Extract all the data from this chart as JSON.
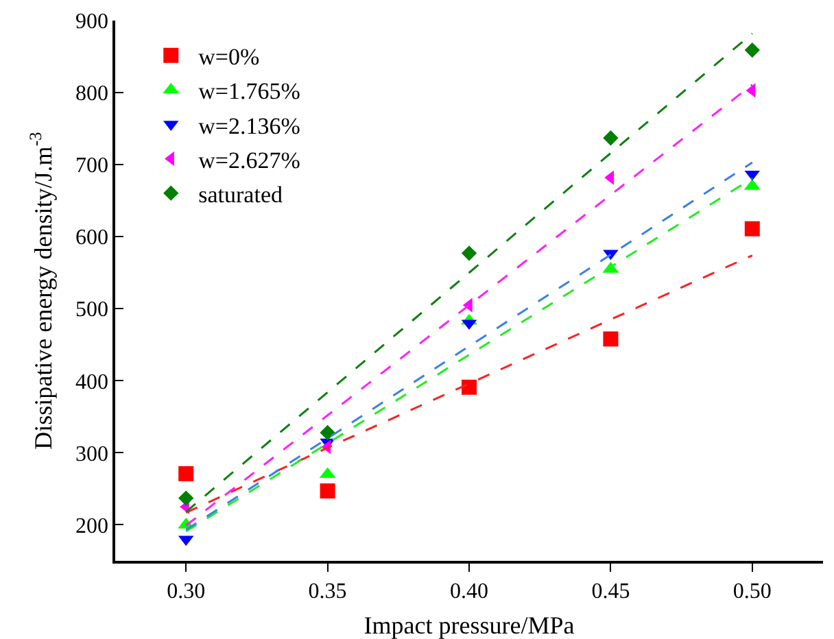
{
  "chart_data": {
    "type": "scatter",
    "xlabel": "Impact pressure/MPa",
    "ylabel": "Dissipative energy density/J.m$^{-3}$",
    "x": [
      0.3,
      0.35,
      0.4,
      0.45,
      0.5
    ],
    "xlim": [
      0.275,
      0.525
    ],
    "xticks": [
      {
        "value": 0.3,
        "label": "0.30"
      },
      {
        "value": 0.35,
        "label": "0.35"
      },
      {
        "value": 0.4,
        "label": "0.40"
      },
      {
        "value": 0.45,
        "label": "0.45"
      },
      {
        "value": 0.5,
        "label": "0.50"
      }
    ],
    "ylim": [
      150,
      900
    ],
    "yticks": [
      200,
      300,
      400,
      500,
      600,
      700,
      800,
      900
    ],
    "grid": false,
    "legend": "top left",
    "series": [
      {
        "name": "w=0%",
        "color": "#ff0000",
        "marker": "square",
        "values": [
          271,
          247,
          391,
          458,
          611
        ]
      },
      {
        "name": "w=1.765%",
        "color": "#00ff00",
        "marker": "triangle-up",
        "values": [
          200,
          270,
          483,
          555,
          670
        ]
      },
      {
        "name": "w=2.136%",
        "color": "#0000ff",
        "marker": "triangle-down",
        "values": [
          180,
          315,
          480,
          577,
          687
        ]
      },
      {
        "name": "w=2.627%",
        "color": "#ff00ff",
        "marker": "triangle-left",
        "values": [
          225,
          308,
          505,
          682,
          803
        ]
      },
      {
        "name": "saturated",
        "color": "#007f00",
        "marker": "diamond",
        "values": [
          237,
          328,
          577,
          737,
          859
        ]
      },
      {
        "type": "line",
        "line_style": "dashed",
        "color": "#ff2020",
        "values": [
          217,
          307,
          396,
          485,
          574
        ]
      },
      {
        "type": "line",
        "line_style": "dashed",
        "color": "#20ee20",
        "values": [
          191,
          313,
          436,
          558,
          681
        ]
      },
      {
        "type": "line",
        "line_style": "dashed",
        "color": "#3a80e8",
        "values": [
          193,
          320,
          448,
          575,
          703
        ]
      },
      {
        "type": "line",
        "line_style": "dashed",
        "color": "#ff20ff",
        "values": [
          199,
          352,
          505,
          658,
          811
        ]
      },
      {
        "type": "line",
        "line_style": "dashed",
        "color": "#108010",
        "values": [
          218,
          384,
          550,
          716,
          882
        ]
      }
    ]
  }
}
